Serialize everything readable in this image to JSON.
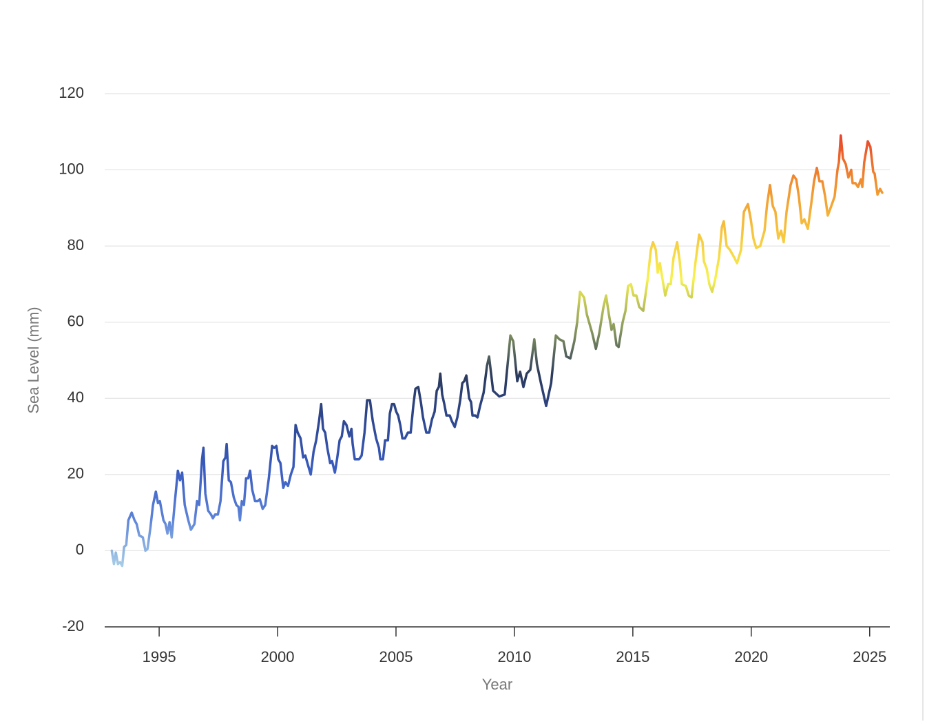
{
  "chart_data": {
    "type": "line",
    "x_label": "Year",
    "y_label": "Sea Level (mm)",
    "x": [
      1993.0,
      1993.09,
      1993.17,
      1993.26,
      1993.35,
      1993.44,
      1993.52,
      1993.61,
      1993.7,
      1993.84,
      1993.96,
      1994.05,
      1994.16,
      1994.31,
      1994.42,
      1994.51,
      1994.63,
      1994.74,
      1994.86,
      1994.95,
      1995.03,
      1995.18,
      1995.27,
      1995.35,
      1995.44,
      1995.53,
      1995.65,
      1995.79,
      1995.88,
      1995.97,
      1996.08,
      1996.23,
      1996.34,
      1996.49,
      1996.6,
      1996.69,
      1996.81,
      1996.87,
      1996.95,
      1997.07,
      1997.19,
      1997.27,
      1997.36,
      1997.48,
      1997.59,
      1997.71,
      1997.8,
      1997.85,
      1997.94,
      1998.03,
      1998.15,
      1998.26,
      1998.35,
      1998.41,
      1998.49,
      1998.58,
      1998.67,
      1998.76,
      1998.84,
      1998.93,
      1999.05,
      1999.16,
      1999.25,
      1999.37,
      1999.48,
      1999.63,
      1999.77,
      1999.86,
      1999.95,
      2000.03,
      2000.12,
      2000.24,
      2000.33,
      2000.44,
      2000.56,
      2000.67,
      2000.76,
      2000.85,
      2000.97,
      2001.08,
      2001.17,
      2001.26,
      2001.4,
      2001.52,
      2001.63,
      2001.75,
      2001.84,
      2001.92,
      2002.01,
      2002.1,
      2002.22,
      2002.3,
      2002.42,
      2002.51,
      2002.62,
      2002.71,
      2002.8,
      2002.91,
      2003.03,
      2003.12,
      2003.17,
      2003.26,
      2003.44,
      2003.55,
      2003.67,
      2003.78,
      2003.9,
      2004.02,
      2004.16,
      2004.28,
      2004.34,
      2004.45,
      2004.54,
      2004.66,
      2004.74,
      2004.83,
      2004.92,
      2005.01,
      2005.09,
      2005.18,
      2005.27,
      2005.38,
      2005.5,
      2005.62,
      2005.73,
      2005.82,
      2005.94,
      2006.05,
      2006.14,
      2006.28,
      2006.4,
      2006.52,
      2006.63,
      2006.72,
      2006.81,
      2006.87,
      2006.95,
      2007.04,
      2007.13,
      2007.27,
      2007.36,
      2007.48,
      2007.59,
      2007.71,
      2007.8,
      2007.88,
      2007.97,
      2008.09,
      2008.17,
      2008.23,
      2008.35,
      2008.44,
      2008.55,
      2008.7,
      2008.84,
      2008.93,
      2009.1,
      2009.36,
      2009.59,
      2009.83,
      2009.95,
      2010.12,
      2010.24,
      2010.38,
      2010.52,
      2010.67,
      2010.84,
      2010.95,
      2011.12,
      2011.34,
      2011.55,
      2011.75,
      2011.9,
      2012.07,
      2012.19,
      2012.36,
      2012.53,
      2012.65,
      2012.77,
      2012.94,
      2013.06,
      2013.29,
      2013.44,
      2013.58,
      2013.76,
      2013.87,
      2013.99,
      2014.1,
      2014.19,
      2014.31,
      2014.4,
      2014.57,
      2014.69,
      2014.8,
      2014.92,
      2015.03,
      2015.15,
      2015.27,
      2015.44,
      2015.62,
      2015.76,
      2015.85,
      2015.97,
      2016.05,
      2016.14,
      2016.26,
      2016.37,
      2016.49,
      2016.6,
      2016.72,
      2016.87,
      2016.98,
      2017.07,
      2017.24,
      2017.36,
      2017.48,
      2017.65,
      2017.8,
      2017.94,
      2018.0,
      2018.12,
      2018.23,
      2018.35,
      2018.47,
      2018.64,
      2018.76,
      2018.84,
      2018.96,
      2019.1,
      2019.28,
      2019.4,
      2019.57,
      2019.69,
      2019.86,
      2019.98,
      2020.09,
      2020.21,
      2020.38,
      2020.56,
      2020.67,
      2020.79,
      2020.91,
      2021.02,
      2021.14,
      2021.26,
      2021.37,
      2021.49,
      2021.66,
      2021.78,
      2021.9,
      2022.01,
      2022.13,
      2022.24,
      2022.39,
      2022.53,
      2022.65,
      2022.77,
      2022.88,
      2023.0,
      2023.12,
      2023.23,
      2023.35,
      2023.52,
      2023.64,
      2023.7,
      2023.78,
      2023.87,
      2023.99,
      2024.1,
      2024.22,
      2024.28,
      2024.4,
      2024.51,
      2024.63,
      2024.69,
      2024.77,
      2024.92,
      2025.03,
      2025.15,
      2025.21,
      2025.33,
      2025.44,
      2025.53
    ],
    "series": [
      {
        "colors": [
          "#a8cde6",
          "#5b82d8",
          "#3a5cc0",
          "#2e4893",
          "#2b3a5c",
          "#8d9c5e",
          "#f7f24f",
          "#f6c43e",
          "#f0902f",
          "#e8442a"
        ],
        "values": [
          0,
          -3.5,
          -0.5,
          -3.5,
          -3,
          -4,
          1,
          1.5,
          8,
          10,
          8,
          7,
          4,
          3.5,
          0,
          0.5,
          6,
          12,
          15.5,
          12.5,
          13,
          8,
          7,
          4.5,
          7.5,
          3.5,
          12,
          21,
          18.5,
          20.5,
          12,
          8,
          5.5,
          7,
          13,
          12,
          24,
          27,
          15,
          10.5,
          9.5,
          8.5,
          9.5,
          9.5,
          13,
          23.5,
          24.5,
          28,
          18.5,
          18,
          14,
          12,
          11.5,
          8,
          13,
          12,
          19,
          19,
          21,
          16,
          13,
          13,
          13.5,
          11,
          12,
          19,
          27.5,
          27,
          27.5,
          24,
          23,
          16.5,
          18,
          17,
          20,
          22,
          33,
          31,
          29.5,
          24.5,
          25,
          23,
          20,
          26,
          29,
          34,
          38.5,
          32,
          31,
          27,
          23,
          23.5,
          20.5,
          24,
          29,
          30,
          34,
          33,
          30,
          32,
          28,
          24,
          24,
          25,
          31,
          39.5,
          39.5,
          34,
          29.5,
          27,
          24,
          24,
          29,
          29,
          36,
          38.5,
          38.5,
          36.5,
          35.5,
          33,
          29.5,
          29.5,
          31,
          31,
          38,
          42.5,
          43,
          39,
          35,
          31,
          31,
          34.5,
          36.5,
          42,
          43,
          46.5,
          41,
          38.5,
          35.5,
          35.5,
          34,
          32.5,
          35,
          39.5,
          44,
          44.5,
          46,
          40,
          39,
          35.5,
          35.5,
          35,
          38,
          41.5,
          48.5,
          51,
          42,
          40.5,
          41,
          56.5,
          55,
          44.5,
          47,
          43,
          46.5,
          47.5,
          55.5,
          49,
          44,
          38,
          44,
          56.5,
          55.5,
          55,
          51,
          50.5,
          55,
          60,
          68,
          66.5,
          62,
          57,
          53,
          57,
          64,
          67,
          62,
          58,
          59.5,
          54,
          53.5,
          60,
          63,
          69.5,
          70,
          67,
          67,
          64,
          63,
          71,
          79,
          81,
          79,
          73,
          75.5,
          71,
          67,
          70,
          70,
          77,
          81,
          76,
          70,
          69.5,
          67,
          66.5,
          76,
          83,
          81,
          76,
          74,
          70,
          68,
          71,
          77,
          85,
          86.5,
          80,
          79,
          77,
          75.5,
          79,
          89,
          91,
          87,
          82,
          79.5,
          80,
          84,
          91,
          96,
          90.5,
          89,
          82,
          84,
          81,
          89,
          96,
          98.5,
          97.5,
          93,
          86,
          87,
          84.5,
          91,
          97,
          100.5,
          97,
          97,
          93,
          88,
          90,
          93,
          100,
          102,
          109,
          103,
          101.5,
          98,
          100,
          96.5,
          96.5,
          95.5,
          97.5,
          95.5,
          102,
          107.5,
          106,
          99.5,
          99,
          93.5,
          95,
          94
        ]
      }
    ],
    "xlim": [
      1992.7,
      2025.85
    ],
    "xticks": [
      1995,
      2000,
      2005,
      2010,
      2015,
      2020,
      2025
    ],
    "ylim": [
      -20,
      120
    ],
    "yticks": [
      -20,
      0,
      20,
      40,
      60,
      80,
      100,
      120
    ],
    "grid": true
  }
}
